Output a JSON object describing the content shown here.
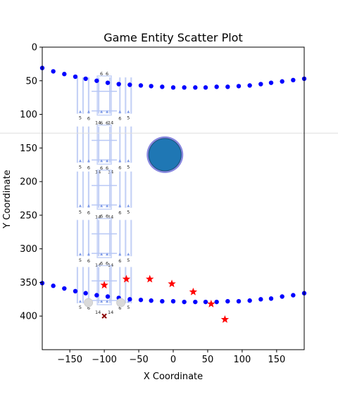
{
  "chart_data": {
    "type": "scatter",
    "title": "Game Entity Scatter Plot",
    "xlabel": "X Coordinate",
    "ylabel": "Y Coordinate",
    "xlim": [
      -190,
      190
    ],
    "ylim": [
      450,
      0
    ],
    "y_inverted": true,
    "x_ticks": [
      -150,
      -100,
      -50,
      0,
      50,
      100,
      150
    ],
    "x_tick_labels": [
      "−150",
      "−100",
      "−50",
      "0",
      "50",
      "100",
      "150"
    ],
    "y_ticks": [
      0,
      50,
      100,
      150,
      200,
      250,
      300,
      350,
      400
    ],
    "y_tick_labels": [
      "0",
      "50",
      "100",
      "150",
      "200",
      "250",
      "300",
      "350",
      "400"
    ],
    "grid": false,
    "horizontal_line_y": 128,
    "colors": {
      "path": "#0000ff",
      "star": "#ff0000",
      "circle_fill": "#1f77b4",
      "circle_edge": "#7b7bdc",
      "cross": "#8b0000",
      "ghost": "#d9d9d9",
      "structure": "#b8c8f5"
    },
    "series": [
      {
        "marker": "circle-dot",
        "color": "#0000ff",
        "x": [
          -190,
          -174,
          -158,
          -142,
          -127,
          -111,
          -95,
          -79,
          -63,
          -47,
          -32,
          -16,
          0,
          16,
          32,
          47,
          63,
          79,
          95,
          111,
          127,
          142,
          158,
          174,
          190
        ],
        "y": [
          31,
          36,
          40,
          44,
          47,
          50,
          53,
          55,
          56,
          57,
          58,
          59,
          60,
          60,
          60,
          60,
          59,
          59,
          58,
          57,
          55,
          53,
          51,
          49,
          47
        ]
      },
      {
        "marker": "circle-dot",
        "color": "#0000ff",
        "x": [
          -190,
          -174,
          -158,
          -142,
          -127,
          -111,
          -95,
          -79,
          -63,
          -47,
          -32,
          -16,
          0,
          16,
          32,
          47,
          63,
          79,
          95,
          111,
          127,
          142,
          158,
          174,
          190
        ],
        "y": [
          351,
          355,
          359,
          363,
          366,
          369,
          371,
          373,
          375,
          376,
          377,
          378,
          378,
          379,
          379,
          379,
          379,
          378,
          378,
          377,
          375,
          374,
          371,
          369,
          366
        ]
      },
      {
        "marker": "star",
        "color": "#ff0000",
        "x": [
          -100,
          -68,
          -34,
          -2,
          29,
          55,
          75
        ],
        "y": [
          354,
          345,
          345,
          352,
          364,
          382,
          405
        ]
      },
      {
        "marker": "big-circle",
        "color": "#1f77b4",
        "x": [
          -12
        ],
        "y": [
          160
        ]
      },
      {
        "marker": "x",
        "color": "#8b0000",
        "x": [
          -100
        ],
        "y": [
          400
        ]
      },
      {
        "marker": "ghost-circle",
        "color": "#d9d9d9",
        "x": [
          -123,
          -76
        ],
        "y": [
          380,
          380
        ]
      }
    ],
    "structures": {
      "x_center": -100,
      "width": 78,
      "height": 54,
      "y_tops": [
        45,
        118,
        185,
        257,
        327
      ],
      "labels": {
        "corner": "5",
        "inner": "6",
        "mid": "14"
      }
    }
  }
}
